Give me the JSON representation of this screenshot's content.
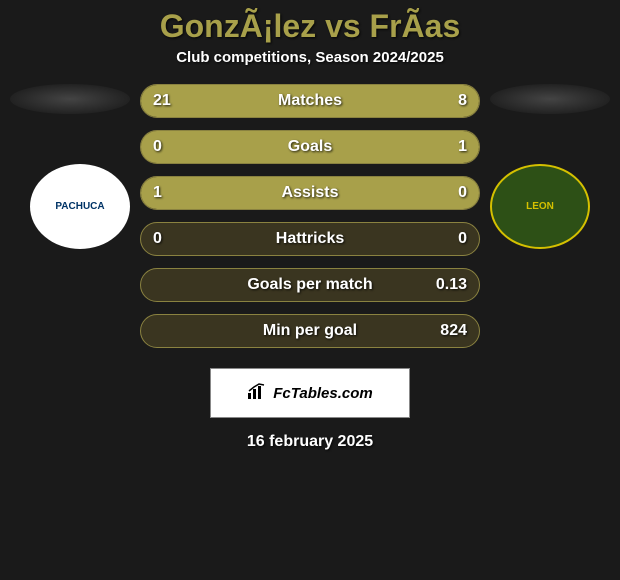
{
  "header": {
    "title": "GonzÃ¡lez vs FrÃ­as",
    "subtitle": "Club competitions, Season 2024/2025"
  },
  "teams": {
    "left": {
      "name": "PACHUCA",
      "logo_bg": "#ffffff",
      "logo_text_color": "#003366"
    },
    "right": {
      "name": "LEON",
      "logo_bg": "#2d5016",
      "logo_text_color": "#d4c000"
    }
  },
  "stats": [
    {
      "label": "Matches",
      "left_value": "21",
      "right_value": "8",
      "left_fill_pct": 72,
      "right_fill_pct": 28
    },
    {
      "label": "Goals",
      "left_value": "0",
      "right_value": "1",
      "left_fill_pct": 0,
      "right_fill_pct": 100
    },
    {
      "label": "Assists",
      "left_value": "1",
      "right_value": "0",
      "left_fill_pct": 100,
      "right_fill_pct": 0
    },
    {
      "label": "Hattricks",
      "left_value": "0",
      "right_value": "0",
      "left_fill_pct": 0,
      "right_fill_pct": 0
    },
    {
      "label": "Goals per match",
      "left_value": "",
      "right_value": "0.13",
      "left_fill_pct": 0,
      "right_fill_pct": 0
    },
    {
      "label": "Min per goal",
      "left_value": "",
      "right_value": "824",
      "left_fill_pct": 0,
      "right_fill_pct": 0
    }
  ],
  "brand": {
    "text": "FcTables.com"
  },
  "date": "16 february 2025",
  "styling": {
    "background_color": "#1a1a1a",
    "title_color": "#a8a04a",
    "bar_bg": "#3a3520",
    "bar_fill": "#a8a04a",
    "bar_border": "#8a8240",
    "text_color": "#ffffff",
    "title_fontsize": 32,
    "subtitle_fontsize": 15,
    "stat_fontsize": 16
  }
}
